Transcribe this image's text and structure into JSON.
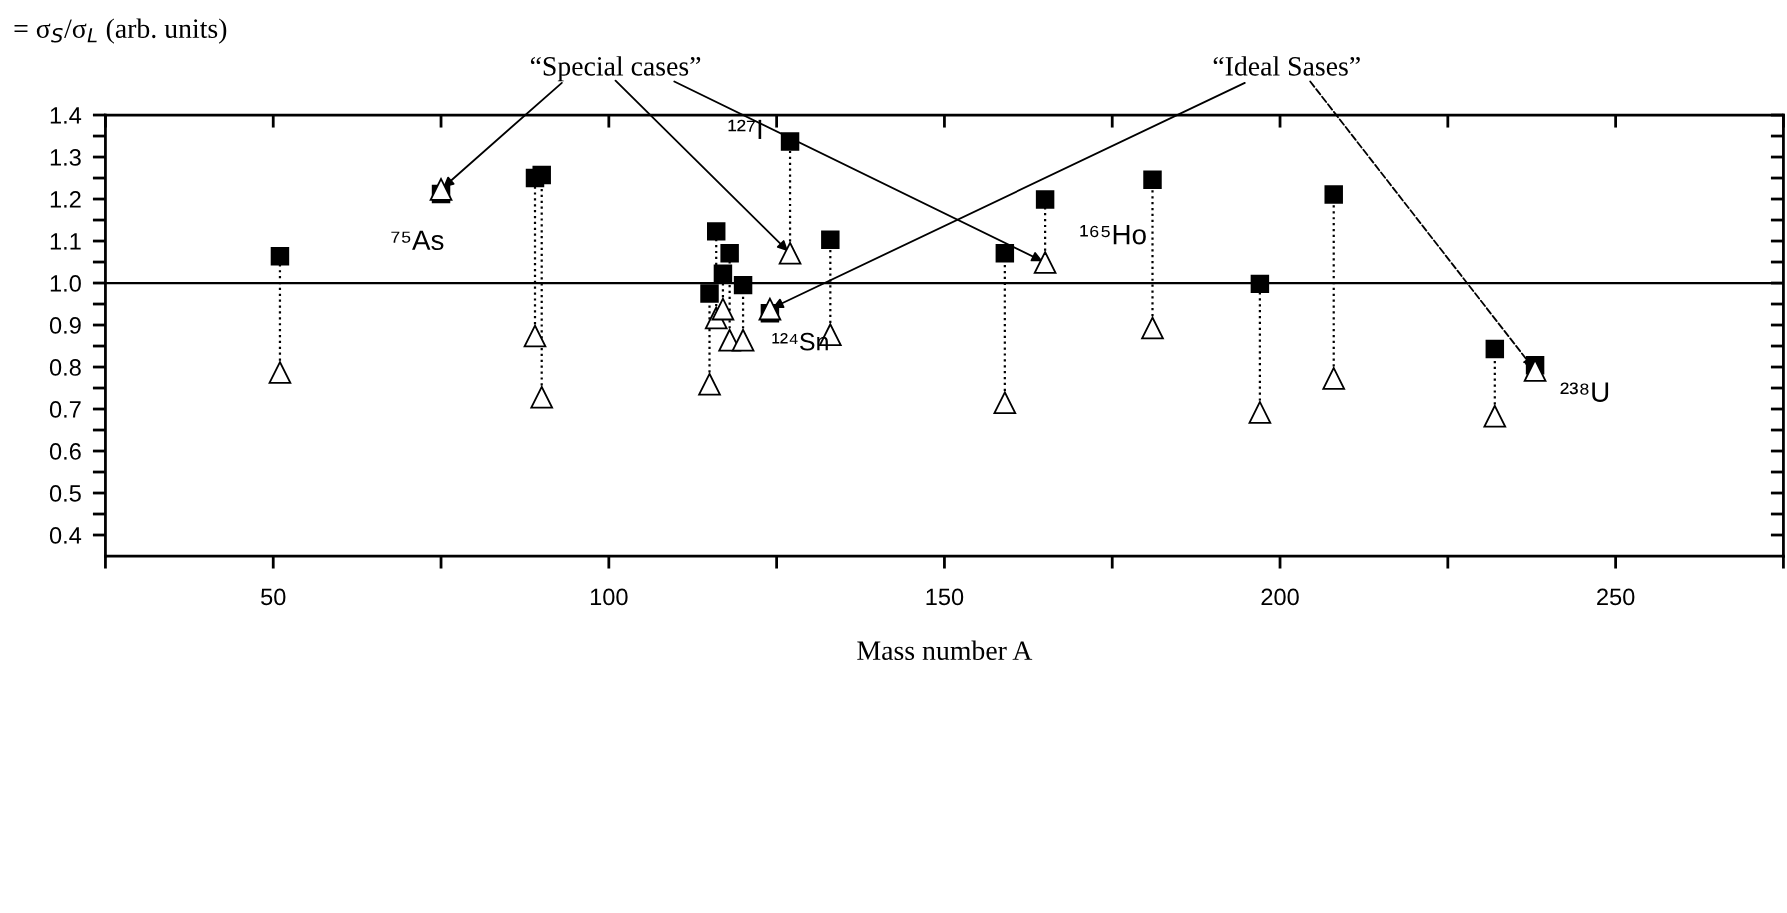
{
  "chart_data": {
    "type": "scatter",
    "xlabel": "Mass number A",
    "ylabel": "= σ$_{S}$/σ$_{L}$ (arb. units)",
    "series": [
      {
        "type": "scatter",
        "marker": "square",
        "color": "#000000",
        "x": [
          51,
          75,
          89,
          90,
          115,
          116,
          117,
          118,
          120,
          124,
          127,
          133,
          159,
          165,
          181,
          197,
          208,
          232,
          238
        ],
        "values": [
          1.064,
          1.212,
          1.25,
          1.257,
          0.975,
          1.123,
          1.022,
          1.071,
          0.995,
          0.928,
          1.337,
          1.103,
          1.071,
          1.199,
          1.246,
          0.998,
          1.211,
          0.843,
          0.804
        ]
      },
      {
        "type": "scatter",
        "marker": "triangle",
        "color": "#000000",
        "x": [
          51,
          75,
          89,
          90,
          115,
          116,
          117,
          118,
          120,
          124,
          127,
          133,
          159,
          165,
          181,
          197,
          208,
          232,
          238
        ],
        "values": [
          0.787,
          1.223,
          0.874,
          0.728,
          0.759,
          0.917,
          0.938,
          0.864,
          0.864,
          0.938,
          1.071,
          0.877,
          0.715,
          1.049,
          0.893,
          0.692,
          0.773,
          0.683,
          0.792
        ]
      },
      {
        "type": "line",
        "line_style": "dotted",
        "color": "#000000",
        "x": [
          51,
          51
        ],
        "values": [
          0.787,
          1.064
        ]
      },
      {
        "type": "line",
        "line_style": "dotted",
        "color": "#000000",
        "x": [
          89,
          89
        ],
        "values": [
          0.874,
          1.25
        ]
      },
      {
        "type": "line",
        "line_style": "dotted",
        "color": "#000000",
        "x": [
          90,
          90
        ],
        "values": [
          0.728,
          1.257
        ]
      },
      {
        "type": "line",
        "line_style": "dotted",
        "color": "#000000",
        "x": [
          115,
          115
        ],
        "values": [
          0.759,
          0.975
        ]
      },
      {
        "type": "line",
        "line_style": "dotted",
        "color": "#000000",
        "x": [
          116,
          116
        ],
        "values": [
          0.917,
          1.123
        ]
      },
      {
        "type": "line",
        "line_style": "dotted",
        "color": "#000000",
        "x": [
          117,
          117
        ],
        "values": [
          0.938,
          1.022
        ]
      },
      {
        "type": "line",
        "line_style": "dotted",
        "color": "#000000",
        "x": [
          118,
          118
        ],
        "values": [
          0.864,
          1.071
        ]
      },
      {
        "type": "line",
        "line_style": "dotted",
        "color": "#000000",
        "x": [
          120,
          120
        ],
        "values": [
          0.864,
          0.995
        ]
      },
      {
        "type": "line",
        "line_style": "dotted",
        "color": "#000000",
        "x": [
          127,
          127
        ],
        "values": [
          1.071,
          1.337
        ]
      },
      {
        "type": "line",
        "line_style": "dotted",
        "color": "#000000",
        "x": [
          133,
          133
        ],
        "values": [
          0.877,
          1.103
        ]
      },
      {
        "type": "line",
        "line_style": "dotted",
        "color": "#000000",
        "x": [
          159,
          159
        ],
        "values": [
          0.715,
          1.071
        ]
      },
      {
        "type": "line",
        "line_style": "dotted",
        "color": "#000000",
        "x": [
          165,
          165
        ],
        "values": [
          1.049,
          1.199
        ]
      },
      {
        "type": "line",
        "line_style": "dotted",
        "color": "#000000",
        "x": [
          181,
          181
        ],
        "values": [
          0.893,
          1.246
        ]
      },
      {
        "type": "line",
        "line_style": "dotted",
        "color": "#000000",
        "x": [
          197,
          197
        ],
        "values": [
          0.692,
          0.998
        ]
      },
      {
        "type": "line",
        "line_style": "dotted",
        "color": "#000000",
        "x": [
          208,
          208
        ],
        "values": [
          0.773,
          1.211
        ]
      },
      {
        "type": "line",
        "line_style": "dotted",
        "color": "#000000",
        "x": [
          232,
          232
        ],
        "values": [
          0.683,
          0.843
        ]
      }
    ],
    "xlim": [
      25,
      275
    ],
    "xticks": [
      {
        "value": 25,
        "label": null
      },
      50,
      {
        "value": 75,
        "label": null
      },
      100,
      {
        "value": 125,
        "label": null
      },
      150,
      {
        "value": 175,
        "label": null
      },
      200,
      {
        "value": 225,
        "label": null
      },
      250,
      {
        "value": 275,
        "label": null
      }
    ],
    "ylim": [
      0.35,
      1.4
    ],
    "yticks": [
      {
        "value": 0.4,
        "label": "0.4"
      },
      {
        "value": 0.45,
        "label": null
      },
      {
        "value": 0.5,
        "label": "0.5"
      },
      {
        "value": 0.55,
        "label": null
      },
      {
        "value": 0.6,
        "label": "0.6"
      },
      {
        "value": 0.65,
        "label": null
      },
      {
        "value": 0.7,
        "label": "0.7"
      },
      {
        "value": 0.75,
        "label": null
      },
      {
        "value": 0.8,
        "label": "0.8"
      },
      {
        "value": 0.85,
        "label": null
      },
      {
        "value": 0.9,
        "label": "0.9"
      },
      {
        "value": 0.95,
        "label": null
      },
      {
        "value": 1,
        "label": "1.0"
      },
      {
        "value": 1.05,
        "label": null
      },
      {
        "value": 1.1,
        "label": "1.1"
      },
      {
        "value": 1.15,
        "label": null
      },
      {
        "value": 1.2,
        "label": "1.2"
      },
      {
        "value": 1.25,
        "label": null
      },
      {
        "value": 1.3,
        "label": "1.3"
      },
      {
        "value": 1.35,
        "label": null
      },
      {
        "value": 1.4,
        "label": "1.4"
      }
    ],
    "ref_lines": [
      {
        "axis": "y",
        "value": 1,
        "color": "#000000",
        "line_style": "solid"
      }
    ],
    "grid": false,
    "legend": false,
    "annotations": [
      {
        "text": "“Special cases”",
        "x": 127,
        "y": 1.071
      },
      {
        "text": "“Ideal Sases”",
        "x": 124,
        "y": 0.938
      },
      {
        "text": "⁷⁵As",
        "x": 75,
        "y": 1.212
      },
      {
        "text": "¹²⁷I",
        "x": 127,
        "y": 1.337
      },
      {
        "text": "¹⁶⁵Ho",
        "x": 165,
        "y": 1.199
      },
      {
        "text": "¹²⁴Sn",
        "x": 124,
        "y": 0.928
      },
      {
        "text": "²³⁸U",
        "x": 238,
        "y": 0.804
      }
    ]
  }
}
